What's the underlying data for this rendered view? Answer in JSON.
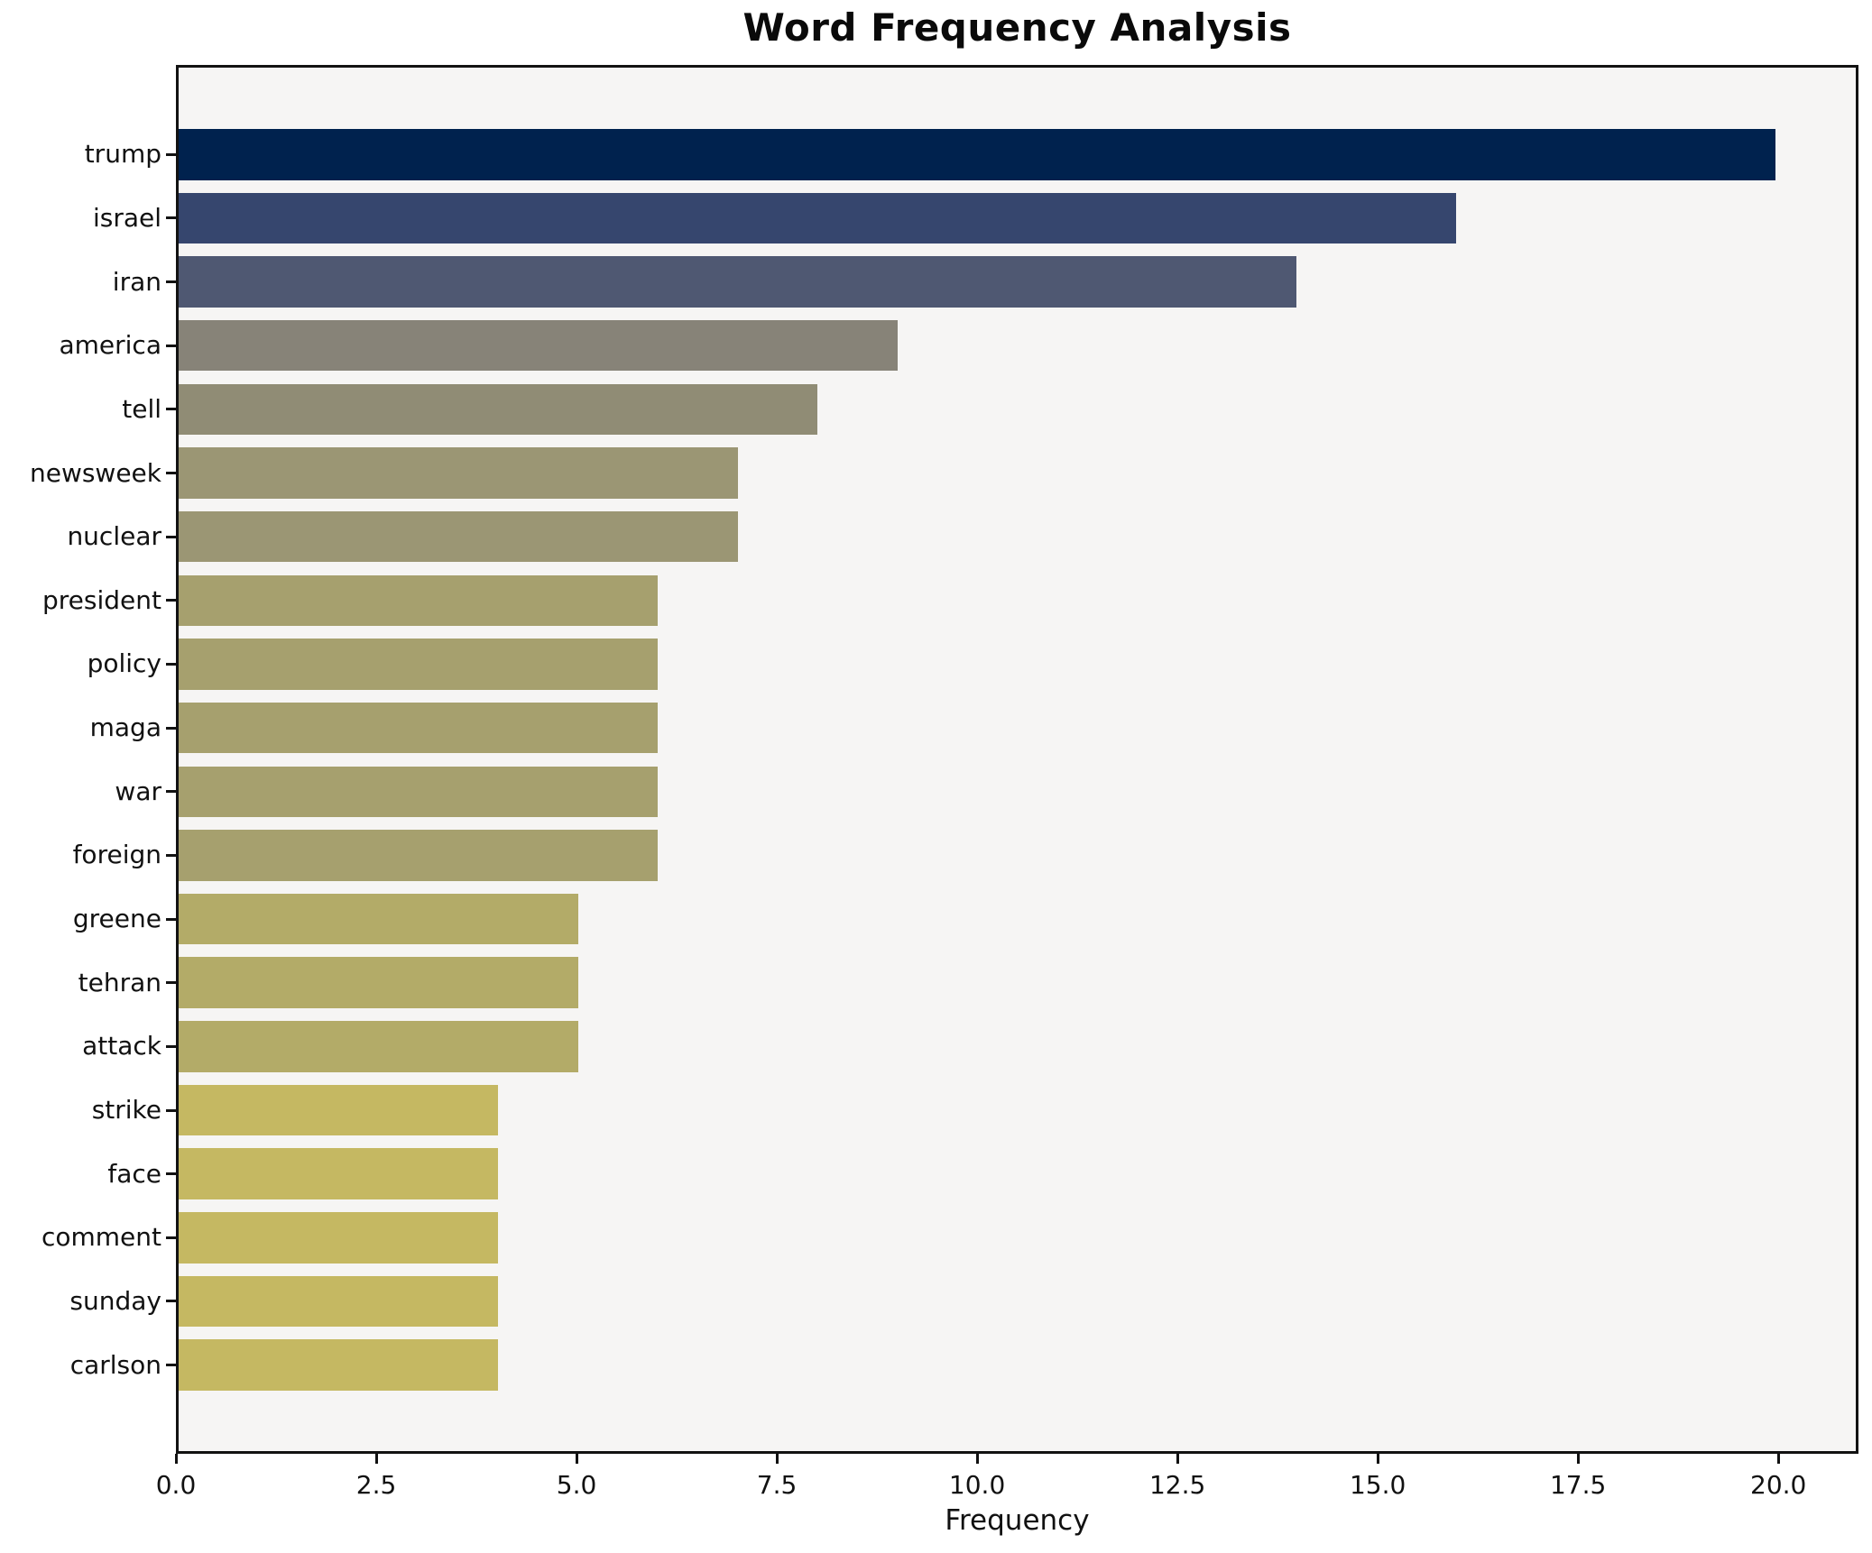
{
  "title": "Word Frequency Analysis",
  "chart_data": {
    "type": "bar",
    "orientation": "horizontal",
    "title": "Word Frequency Analysis",
    "xlabel": "Frequency",
    "ylabel": "",
    "categories": [
      "trump",
      "israel",
      "iran",
      "america",
      "tell",
      "newsweek",
      "nuclear",
      "president",
      "policy",
      "maga",
      "war",
      "foreign",
      "greene",
      "tehran",
      "attack",
      "strike",
      "face",
      "comment",
      "sunday",
      "carlson"
    ],
    "values": [
      20,
      16,
      14,
      9,
      8,
      7,
      7,
      6,
      6,
      6,
      6,
      6,
      5,
      5,
      5,
      4,
      4,
      4,
      4,
      4
    ],
    "bar_colors": [
      "#00224E",
      "#36466E",
      "#4F5872",
      "#878378",
      "#908C75",
      "#9B9674",
      "#9B9674",
      "#A6A06E",
      "#A6A06E",
      "#A6A06E",
      "#A6A06E",
      "#A6A06E",
      "#B3AB68",
      "#B3AB68",
      "#B3AB68",
      "#C5B862",
      "#C5B862",
      "#C5B862",
      "#C5B862",
      "#C5B862"
    ],
    "xlim": [
      0,
      21
    ],
    "x_ticks": [
      0.0,
      2.5,
      5.0,
      7.5,
      10.0,
      12.5,
      15.0,
      17.5,
      20.0
    ],
    "x_tick_labels": [
      "0.0",
      "2.5",
      "5.0",
      "7.5",
      "10.0",
      "12.5",
      "15.0",
      "17.5",
      "20.0"
    ],
    "grid": false,
    "legend": false,
    "plot_background": "#F6F5F4",
    "figure_background": "#FFFFFF",
    "spine_color": "#121212",
    "colormap": "cividis (mapped to 1 - value/20)"
  }
}
